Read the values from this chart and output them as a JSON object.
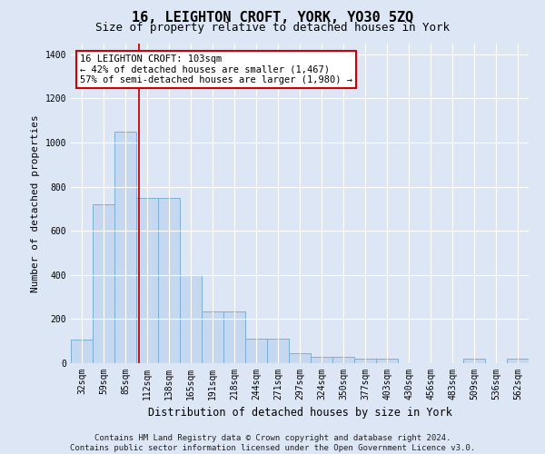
{
  "title": "16, LEIGHTON CROFT, YORK, YO30 5ZQ",
  "subtitle": "Size of property relative to detached houses in York",
  "xlabel": "Distribution of detached houses by size in York",
  "ylabel": "Number of detached properties",
  "footer_line1": "Contains HM Land Registry data © Crown copyright and database right 2024.",
  "footer_line2": "Contains public sector information licensed under the Open Government Licence v3.0.",
  "bar_labels": [
    "32sqm",
    "59sqm",
    "85sqm",
    "112sqm",
    "138sqm",
    "165sqm",
    "191sqm",
    "218sqm",
    "244sqm",
    "271sqm",
    "297sqm",
    "324sqm",
    "350sqm",
    "377sqm",
    "403sqm",
    "430sqm",
    "456sqm",
    "483sqm",
    "509sqm",
    "536sqm",
    "562sqm"
  ],
  "bar_values": [
    105,
    720,
    1050,
    750,
    750,
    400,
    235,
    235,
    110,
    110,
    45,
    30,
    30,
    20,
    20,
    0,
    0,
    0,
    20,
    0,
    20
  ],
  "bar_color": "#c5d8f0",
  "bar_edge_color": "#7aafd4",
  "property_line_x": 2.62,
  "property_line_color": "#cc0000",
  "annotation_line1": "16 LEIGHTON CROFT: 103sqm",
  "annotation_line2": "← 42% of detached houses are smaller (1,467)",
  "annotation_line3": "57% of semi-detached houses are larger (1,980) →",
  "annotation_box_color": "#cc0000",
  "ylim": [
    0,
    1450
  ],
  "yticks": [
    0,
    200,
    400,
    600,
    800,
    1000,
    1200,
    1400
  ],
  "bg_color": "#dde6f5",
  "plot_bg_color": "#dde6f5",
  "grid_color": "#ffffff",
  "title_fontsize": 11,
  "subtitle_fontsize": 9,
  "xlabel_fontsize": 8.5,
  "ylabel_fontsize": 8,
  "tick_fontsize": 7,
  "footer_fontsize": 6.5,
  "ann_fontsize": 7.5
}
